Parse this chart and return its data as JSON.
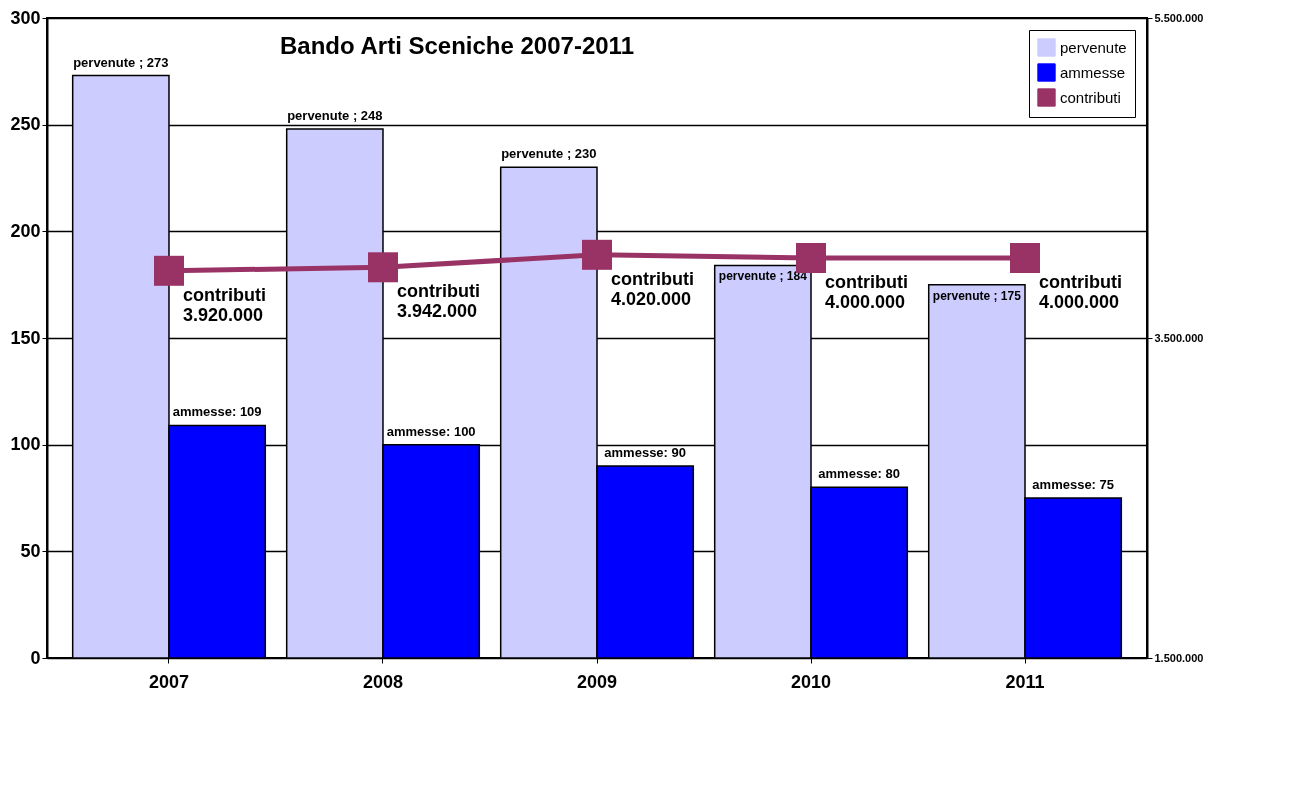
{
  "chart_data": {
    "type": "bar",
    "title": "Bando Arti Sceniche  2007-2011",
    "categories": [
      "2007",
      "2008",
      "2009",
      "2010",
      "2011"
    ],
    "series": [
      {
        "name": "pervenute",
        "color": "#ccccff",
        "values": [
          273,
          248,
          230,
          184,
          175
        ],
        "value_labels": [
          "pervenute ; 273",
          "pervenute ; 248",
          "pervenute ; 230",
          "pervenute ; 184",
          "pervenute ; 175"
        ]
      },
      {
        "name": "ammesse",
        "color": "#0000ff",
        "values": [
          109,
          100,
          90,
          80,
          75
        ],
        "value_labels": [
          "ammesse: 109",
          "ammesse: 100",
          "ammesse: 90",
          "ammesse: 80",
          "ammesse: 75"
        ]
      },
      {
        "name": "contributi",
        "type": "line",
        "axis": "y2",
        "color": "#993366",
        "values": [
          3920000,
          3942000,
          4020000,
          4000000,
          4000000
        ],
        "value_labels": [
          "contributi\n3.920.000",
          "contributi\n3.942.000",
          "contributi\n4.020.000",
          "contributi\n4.000.000",
          "contributi\n4.000.000"
        ]
      }
    ],
    "ylim": [
      0,
      300
    ],
    "yticks": [
      0,
      50,
      100,
      150,
      200,
      250,
      300
    ],
    "y2lim": [
      1500000,
      5500000
    ],
    "y2ticks": [
      {
        "value": 1500000,
        "label": "1.500.000"
      },
      {
        "value": 3500000,
        "label": "3.500.000"
      },
      {
        "value": 5500000,
        "label": "5.500.000"
      }
    ],
    "grid": "y",
    "legend": "top right",
    "marker": "square"
  }
}
